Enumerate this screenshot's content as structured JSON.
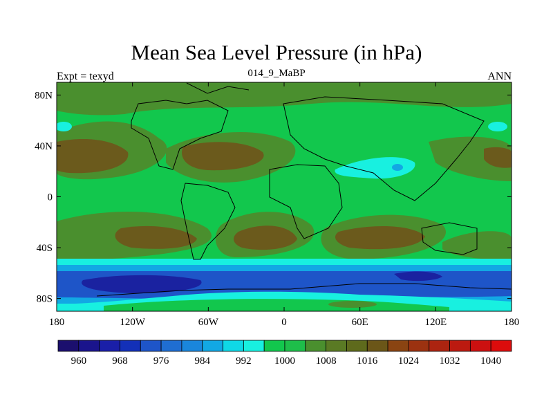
{
  "title": "Mean Sea Level Pressure (in hPa)",
  "subtitle_left": "Expt = texyd",
  "subtitle_center": "014_9_MaBP",
  "subtitle_right": "ANN",
  "map": {
    "lon_ticks": [
      "180",
      "120W",
      "60W",
      "0",
      "60E",
      "120E",
      "180"
    ],
    "lat_ticks": [
      "80N",
      "40N",
      "0",
      "40S",
      "80S"
    ],
    "lon_range": [
      -180,
      180
    ],
    "lat_range": [
      -90,
      90
    ]
  },
  "colorbar": {
    "labels": [
      "960",
      "968",
      "976",
      "984",
      "992",
      "1000",
      "1008",
      "1016",
      "1024",
      "1032",
      "1040"
    ],
    "colors": [
      "#1b0f6e",
      "#1a148c",
      "#1a1fa8",
      "#1330b8",
      "#1e55c8",
      "#1f6ed2",
      "#1a86dc",
      "#12a8e4",
      "#0fd8e6",
      "#18f0e0",
      "#12c74d",
      "#1ebe4a",
      "#4a8f2e",
      "#5a7a24",
      "#5e6a1c",
      "#6b5618",
      "#8a4412",
      "#9c3210",
      "#ac2410",
      "#bc1a10",
      "#cc1010",
      "#dc0c0c"
    ]
  },
  "fills": {
    "base": "#12c74d",
    "high": "#4a8f2e",
    "higher": "#6b5a1c",
    "low1": "#18f0e0",
    "low2": "#12a8e4",
    "low3": "#1e55c8",
    "low4": "#1a22a0"
  }
}
